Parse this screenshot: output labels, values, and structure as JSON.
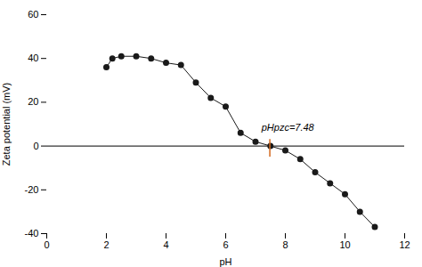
{
  "chart_data": {
    "type": "line",
    "x": [
      2.0,
      2.2,
      2.5,
      3.0,
      3.5,
      4.0,
      4.5,
      5.0,
      5.5,
      6.0,
      6.5,
      7.0,
      7.5,
      8.0,
      8.5,
      9.0,
      9.5,
      10.0,
      10.5,
      11.0
    ],
    "values": [
      36,
      40,
      41,
      41,
      40,
      38,
      37,
      29,
      22,
      18,
      6,
      2,
      0,
      -2,
      -6,
      -12,
      -17,
      -22,
      -30,
      -37
    ],
    "color": "#1a1a1a",
    "marker": "circle",
    "xlim": [
      0,
      12
    ],
    "ylim": [
      -40,
      60
    ],
    "xticks": [
      0,
      2,
      4,
      6,
      8,
      10,
      12
    ],
    "yticks": [
      -40,
      -20,
      0,
      20,
      40,
      60
    ],
    "xlabel": "pH",
    "ylabel": "Zeta potential (mV)",
    "grid": false,
    "hline": {
      "y": 0,
      "color": "#000000"
    },
    "vline": {
      "x": 7.48,
      "ymin": -5,
      "ymax": 3,
      "color": "#d4691e"
    },
    "annotations": [
      {
        "text": "pHpzc=7.48",
        "x": 7.2,
        "y": 7
      }
    ]
  }
}
